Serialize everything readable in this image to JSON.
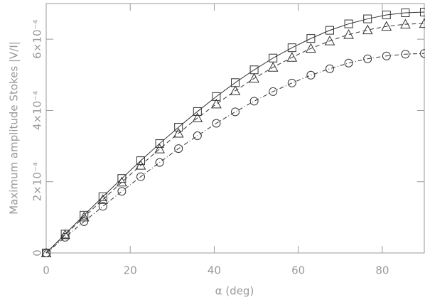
{
  "chart_data": {
    "type": "line",
    "xlabel": "α (deg)",
    "ylabel": "Maximum amplitude Stokes |V/I|",
    "x": [
      0,
      4.5,
      9,
      13.5,
      18,
      22.5,
      27,
      31.5,
      36,
      40.5,
      45,
      49.5,
      54,
      58.5,
      63,
      67.5,
      72,
      76.5,
      81,
      85.5,
      90
    ],
    "series": [
      {
        "color": "#333333",
        "marker": "square",
        "line_style": "solid",
        "values": [
          0,
          5.3e-05,
          0.000106,
          0.000158,
          0.000209,
          0.000259,
          0.000307,
          0.000353,
          0.000397,
          0.000439,
          0.000478,
          0.000514,
          0.000547,
          0.000576,
          0.000602,
          0.000625,
          0.000643,
          0.000657,
          0.000668,
          0.000674,
          0.000676
        ]
      },
      {
        "color": "#333333",
        "marker": "triangle",
        "line_style": "dashed",
        "values": [
          0,
          5.1e-05,
          0.000101,
          0.00015,
          0.000199,
          0.000246,
          0.000292,
          0.000336,
          0.000379,
          0.000418,
          0.000455,
          0.00049,
          0.000521,
          0.000549,
          0.000574,
          0.000595,
          0.000613,
          0.000626,
          0.000636,
          0.000642,
          0.000644
        ]
      },
      {
        "color": "#333333",
        "marker": "circle",
        "line_style": "dashdot",
        "values": [
          0,
          4.4e-05,
          8.8e-05,
          0.000131,
          0.000173,
          0.000214,
          0.000254,
          0.000293,
          0.000329,
          0.000364,
          0.000396,
          0.000426,
          0.000453,
          0.000477,
          0.000499,
          0.000517,
          0.000533,
          0.000545,
          0.000553,
          0.000558,
          0.00056
        ]
      }
    ],
    "xlim": [
      0,
      90
    ],
    "xticks": [
      0,
      20,
      40,
      60,
      80
    ],
    "ylim": [
      0,
      0.0007
    ],
    "yticks": [
      0,
      {
        "value": 0.0002,
        "label": "2×10⁻⁴"
      },
      {
        "value": 0.0004,
        "label": "4×10⁻⁴"
      },
      {
        "value": 0.0006,
        "label": "6×10⁻⁴"
      }
    ]
  }
}
